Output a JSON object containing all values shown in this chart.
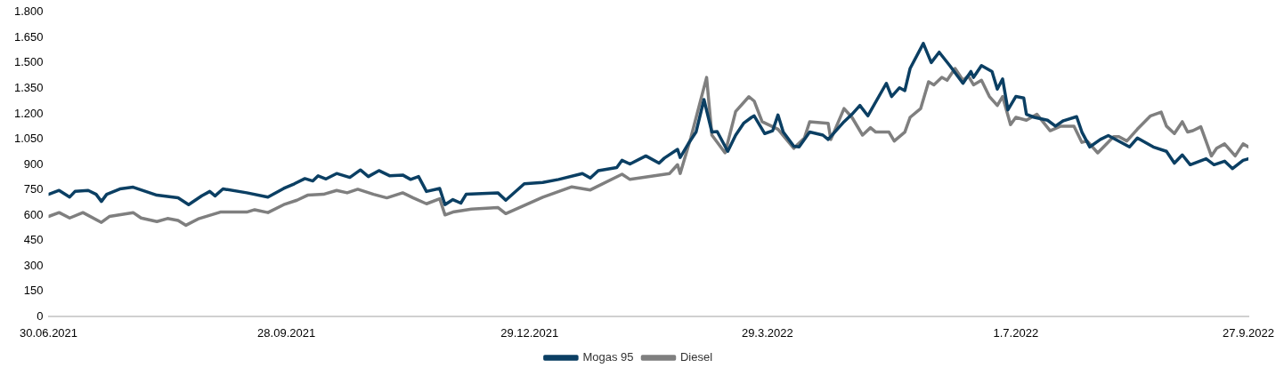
{
  "chart_data": {
    "type": "line",
    "xlim": [
      "2021-06-30",
      "2022-09-27"
    ],
    "xticks": [
      {
        "value": "2021-06-30",
        "label": "30.06.2021"
      },
      {
        "value": "2021-09-28",
        "label": "28.09.2021"
      },
      {
        "value": "2021-12-29",
        "label": "29.12.2021"
      },
      {
        "value": "2022-03-29",
        "label": "29.3.2022"
      },
      {
        "value": "2022-07-01",
        "label": "1.7.2022"
      },
      {
        "value": "2022-09-27",
        "label": "27.9.2022"
      }
    ],
    "ylim": [
      0,
      1800
    ],
    "yticks": [
      0,
      150,
      300,
      450,
      600,
      750,
      900,
      {
        "value": 1050,
        "label": "1.050"
      },
      {
        "value": 1200,
        "label": "1.200"
      },
      {
        "value": 1350,
        "label": "1.350"
      },
      {
        "value": 1500,
        "label": "1.500"
      },
      {
        "value": 1650,
        "label": "1.650"
      },
      {
        "value": 1800,
        "label": "1.800"
      }
    ],
    "grid": false,
    "legend": "bottom",
    "marker": "none",
    "line_style": "solid",
    "series": [
      {
        "name": "Mogas 95",
        "color": "#0b3f63",
        "x": [
          "2021-06-30",
          "2021-07-04",
          "2021-07-08",
          "2021-07-10",
          "2021-07-15",
          "2021-07-18",
          "2021-07-20",
          "2021-07-22",
          "2021-07-27",
          "2021-08-01",
          "2021-08-10",
          "2021-08-18",
          "2021-08-22",
          "2021-08-27",
          "2021-08-30",
          "2021-09-01",
          "2021-09-04",
          "2021-09-13",
          "2021-09-21",
          "2021-09-27",
          "2021-10-01",
          "2021-10-05",
          "2021-10-08",
          "2021-10-10",
          "2021-10-13",
          "2021-10-17",
          "2021-10-22",
          "2021-10-26",
          "2021-10-29",
          "2021-11-02",
          "2021-11-06",
          "2021-11-11",
          "2021-11-14",
          "2021-11-17",
          "2021-11-20",
          "2021-11-25",
          "2021-11-27",
          "2021-11-30",
          "2021-12-03",
          "2021-12-05",
          "2021-12-17",
          "2021-12-20",
          "2021-12-27",
          "2022-01-03",
          "2022-01-09",
          "2022-01-18",
          "2022-01-21",
          "2022-01-24",
          "2022-01-31",
          "2022-02-02",
          "2022-02-05",
          "2022-02-11",
          "2022-02-16",
          "2022-02-18",
          "2022-02-23",
          "2022-02-24",
          "2022-02-27",
          "2022-03-02",
          "2022-03-05",
          "2022-03-08",
          "2022-03-10",
          "2022-03-14",
          "2022-03-17",
          "2022-03-20",
          "2022-03-23",
          "2022-03-24",
          "2022-03-28",
          "2022-03-31",
          "2022-04-02",
          "2022-04-04",
          "2022-04-08",
          "2022-04-10",
          "2022-04-14",
          "2022-04-19",
          "2022-04-21",
          "2022-04-27",
          "2022-04-30",
          "2022-05-03",
          "2022-05-06",
          "2022-05-13",
          "2022-05-15",
          "2022-05-18",
          "2022-05-20",
          "2022-05-22",
          "2022-05-27",
          "2022-05-30",
          "2022-06-02",
          "2022-06-06",
          "2022-06-11",
          "2022-06-14",
          "2022-06-15",
          "2022-06-18",
          "2022-06-22",
          "2022-06-24",
          "2022-06-26",
          "2022-06-28",
          "2022-07-01",
          "2022-07-04",
          "2022-07-05",
          "2022-07-08",
          "2022-07-13",
          "2022-07-16",
          "2022-07-19",
          "2022-07-24",
          "2022-07-26",
          "2022-07-29",
          "2022-08-02",
          "2022-08-05",
          "2022-08-13",
          "2022-08-16",
          "2022-08-22",
          "2022-08-27",
          "2022-08-30",
          "2022-09-02",
          "2022-09-05",
          "2022-09-11",
          "2022-09-14",
          "2022-09-18",
          "2022-09-21",
          "2022-09-25",
          "2022-09-27"
        ],
        "values": [
          724,
          747,
          708,
          741,
          747,
          724,
          682,
          724,
          756,
          766,
          719,
          703,
          663,
          715,
          741,
          715,
          756,
          733,
          707,
          759,
          786,
          817,
          803,
          833,
          815,
          847,
          824,
          868,
          829,
          864,
          834,
          838,
          812,
          829,
          741,
          759,
          663,
          693,
          672,
          724,
          733,
          689,
          786,
          794,
          812,
          847,
          820,
          864,
          882,
          925,
          903,
          951,
          908,
          938,
          990,
          942,
          1021,
          1092,
          1284,
          1092,
          1095,
          978,
          1074,
          1144,
          1179,
          1188,
          1083,
          1100,
          1193,
          1092,
          1008,
          1004,
          1092,
          1074,
          1048,
          1153,
          1197,
          1249,
          1188,
          1380,
          1302,
          1354,
          1337,
          1468,
          1616,
          1503,
          1564,
          1485,
          1380,
          1450,
          1415,
          1485,
          1450,
          1346,
          1406,
          1223,
          1302,
          1293,
          1197,
          1179,
          1162,
          1127,
          1159,
          1183,
          1092,
          1004,
          1048,
          1071,
          1004,
          1057,
          1004,
          978,
          908,
          957,
          899,
          934,
          899,
          920,
          876,
          925,
          934
        ]
      },
      {
        "name": "Diesel",
        "color": "#7f7f7f",
        "x": [
          "2021-06-30",
          "2021-07-04",
          "2021-07-08",
          "2021-07-13",
          "2021-07-20",
          "2021-07-23",
          "2021-08-01",
          "2021-08-04",
          "2021-08-10",
          "2021-08-14",
          "2021-08-18",
          "2021-08-21",
          "2021-08-26",
          "2021-09-03",
          "2021-09-13",
          "2021-09-16",
          "2021-09-21",
          "2021-09-27",
          "2021-10-02",
          "2021-10-06",
          "2021-10-12",
          "2021-10-17",
          "2021-10-21",
          "2021-10-25",
          "2021-10-31",
          "2021-11-05",
          "2021-11-11",
          "2021-11-15",
          "2021-11-20",
          "2021-11-25",
          "2021-11-27",
          "2021-11-30",
          "2021-12-07",
          "2021-12-17",
          "2021-12-20",
          "2022-01-03",
          "2022-01-14",
          "2022-01-21",
          "2022-02-02",
          "2022-02-05",
          "2022-02-20",
          "2022-02-23",
          "2022-02-24",
          "2022-02-28",
          "2022-03-06",
          "2022-03-08",
          "2022-03-13",
          "2022-03-17",
          "2022-03-22",
          "2022-03-24",
          "2022-03-27",
          "2022-04-02",
          "2022-04-08",
          "2022-04-12",
          "2022-04-14",
          "2022-04-21",
          "2022-04-22",
          "2022-04-27",
          "2022-04-30",
          "2022-05-04",
          "2022-05-07",
          "2022-05-09",
          "2022-05-14",
          "2022-05-16",
          "2022-05-20",
          "2022-05-22",
          "2022-05-26",
          "2022-05-29",
          "2022-05-31",
          "2022-06-03",
          "2022-06-05",
          "2022-06-08",
          "2022-06-11",
          "2022-06-13",
          "2022-06-15",
          "2022-06-18",
          "2022-06-21",
          "2022-06-24",
          "2022-06-26",
          "2022-06-29",
          "2022-07-01",
          "2022-07-05",
          "2022-07-09",
          "2022-07-14",
          "2022-07-18",
          "2022-07-23",
          "2022-07-26",
          "2022-07-28",
          "2022-08-01",
          "2022-08-07",
          "2022-08-09",
          "2022-08-12",
          "2022-08-16",
          "2022-08-21",
          "2022-08-25",
          "2022-08-27",
          "2022-08-30",
          "2022-09-02",
          "2022-09-04",
          "2022-09-06",
          "2022-09-09",
          "2022-09-13",
          "2022-09-15",
          "2022-09-18",
          "2022-09-22",
          "2022-09-25",
          "2022-09-27"
        ],
        "values": [
          593,
          616,
          584,
          616,
          558,
          593,
          616,
          584,
          563,
          581,
          570,
          541,
          581,
          619,
          619,
          633,
          616,
          663,
          689,
          719,
          724,
          747,
          733,
          754,
          724,
          703,
          733,
          703,
          668,
          698,
          602,
          619,
          637,
          646,
          610,
          707,
          768,
          750,
          843,
          812,
          847,
          899,
          847,
          1057,
          1415,
          1074,
          969,
          1214,
          1301,
          1275,
          1153,
          1109,
          996,
          1057,
          1153,
          1144,
          1048,
          1231,
          1179,
          1074,
          1118,
          1092,
          1092,
          1039,
          1092,
          1179,
          1231,
          1389,
          1371,
          1415,
          1398,
          1468,
          1398,
          1424,
          1371,
          1398,
          1302,
          1249,
          1302,
          1136,
          1179,
          1162,
          1197,
          1100,
          1127,
          1127,
          1031,
          1039,
          969,
          1065,
          1065,
          1039,
          1109,
          1188,
          1210,
          1127,
          1083,
          1153,
          1092,
          1100,
          1123,
          951,
          996,
          1022,
          951,
          1022,
          1004
        ]
      }
    ]
  }
}
